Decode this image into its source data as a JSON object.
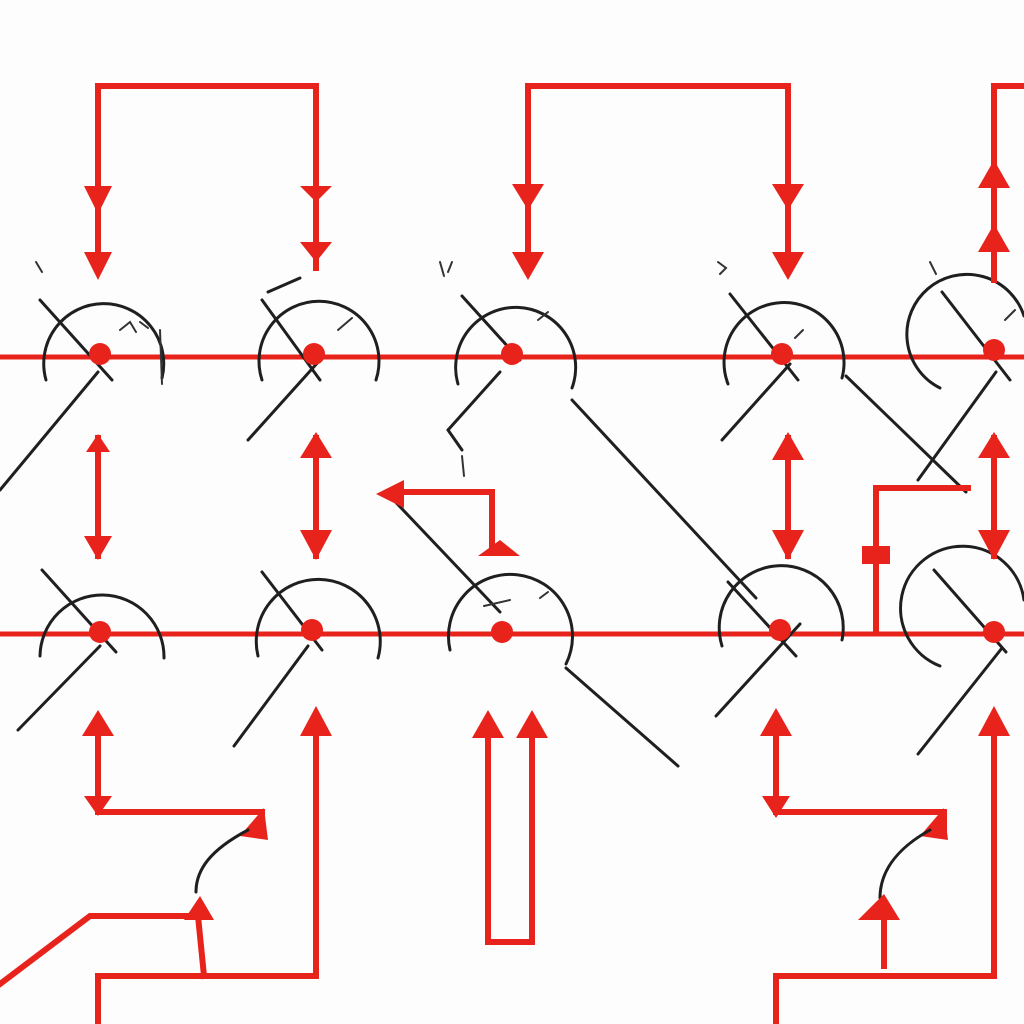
{
  "diagram": {
    "colors": {
      "wire": "#e8231c",
      "ink": "#1f1f1f",
      "background": "#fdfdfd"
    },
    "rows": 2,
    "columns": 5,
    "node_count": 10
  }
}
